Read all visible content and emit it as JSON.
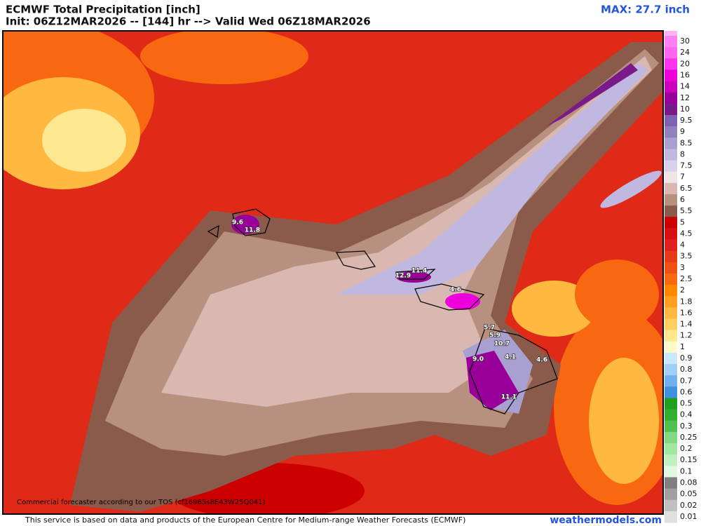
{
  "header": {
    "title": "ECMWF Total Precipitation [inch]",
    "subtitle": "Init: 06Z12MAR2026 -- [144] hr --> Valid Wed 06Z18MAR2026",
    "max_label": "MAX: 27.7 inch"
  },
  "map": {
    "watermark": "Commercial forecaster according to our TOS (cf16965s8E43W25Q041)",
    "labels": [
      "9.6",
      "11.8",
      "11.4",
      "12.9",
      "4.6",
      "9.0",
      "5.7",
      "5.9",
      "10.7",
      "4.1",
      "4.6",
      "11.1"
    ]
  },
  "legend": {
    "labels": [
      30,
      24,
      20,
      16,
      14,
      12,
      10,
      9.5,
      9,
      8.5,
      8,
      7.5,
      7,
      6.5,
      6,
      5.5,
      5,
      4.5,
      4,
      3.5,
      3,
      2.5,
      2,
      1.8,
      1.6,
      1.4,
      1.2,
      1,
      0.9,
      0.8,
      0.7,
      0.6,
      0.5,
      0.4,
      0.3,
      0.25,
      0.2,
      0.15,
      0.1,
      0.08,
      0.05,
      0.02,
      0.01
    ],
    "colors": [
      "#ff80f0",
      "#ff66ee",
      "#ff33ee",
      "#ee00dd",
      "#cc00bb",
      "#990099",
      "#7a1a8a",
      "#8060b0",
      "#9080c0",
      "#a8a0d0",
      "#c0b8e0",
      "#d8d0ec",
      "#f0e4e4",
      "#d8b8b0",
      "#b89080",
      "#8a5a4a",
      "#cc0000",
      "#d81010",
      "#e02020",
      "#e83a1a",
      "#f05010",
      "#f86810",
      "#ff8800",
      "#ffa020",
      "#ffb840",
      "#ffd060",
      "#ffe890",
      "#fff8c8",
      "#c8e8ff",
      "#a0d0f8",
      "#70b0f0",
      "#4090e0",
      "#20a020",
      "#30b030",
      "#50c050",
      "#80d880",
      "#a0e8a0",
      "#c0f0c0",
      "#e0f8e0",
      "#808080",
      "#a0a0a0",
      "#c0c0c0",
      "#e0e0e0"
    ]
  },
  "footer": {
    "credit": "This service is based on data and products of the European Centre for Medium-range Weather Forecasts (ECMWF)",
    "site": "weathermodels.com"
  }
}
